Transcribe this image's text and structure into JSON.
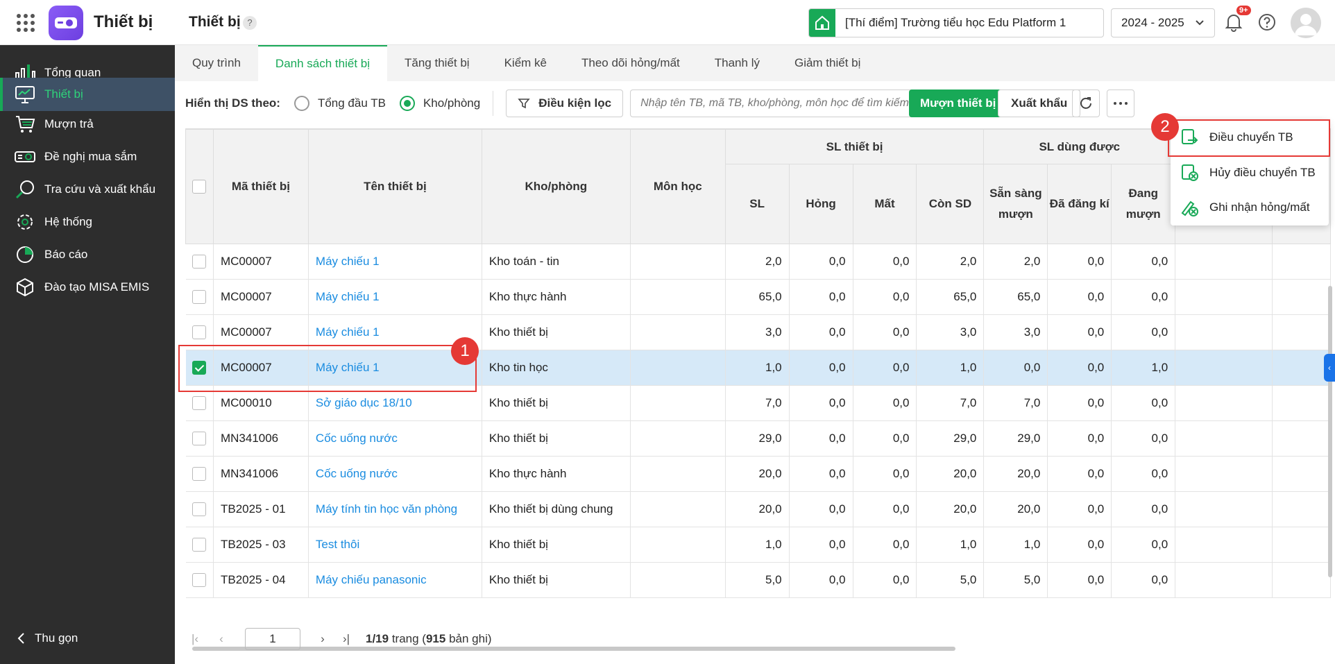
{
  "app": {
    "title": "Thiết bị",
    "page_title": "Thiết bị",
    "help": "?"
  },
  "header": {
    "school": "[Thí điểm] Trường tiểu học Edu Platform 1",
    "year": "2024 - 2025",
    "notif_badge": "9+"
  },
  "sidebar": {
    "items": [
      {
        "label": "Tổng quan",
        "icon": "chart-bars-icon"
      },
      {
        "label": "Thiết bị",
        "icon": "monitor-icon"
      },
      {
        "label": "Mượn trả",
        "icon": "cart-icon"
      },
      {
        "label": "Đề nghị mua sắm",
        "icon": "projector-icon"
      },
      {
        "label": "Tra cứu và xuất khẩu",
        "icon": "search-icon"
      },
      {
        "label": "Hệ thống",
        "icon": "gear-icon"
      },
      {
        "label": "Báo cáo",
        "icon": "pie-chart-icon"
      },
      {
        "label": "Đào tạo MISA EMIS",
        "icon": "cube-icon"
      }
    ],
    "collapse": "Thu gọn"
  },
  "tabs": [
    "Quy trình",
    "Danh sách thiết bị",
    "Tăng thiết bị",
    "Kiểm kê",
    "Theo dõi hỏng/mất",
    "Thanh lý",
    "Giảm thiết bị"
  ],
  "toolbar": {
    "view_label": "Hiển thị DS theo:",
    "radio_total": "Tổng đầu TB",
    "radio_room": "Kho/phòng",
    "filter": "Điều kiện lọc",
    "search_placeholder": "Nhập tên TB, mã TB, kho/phòng, môn học để tìm kiếm",
    "borrow": "Mượn thiết bị",
    "export": "Xuất khẩu"
  },
  "table": {
    "headers": {
      "code": "Mã thiết bị",
      "name": "Tên thiết bị",
      "room": "Kho/phòng",
      "subject": "Môn học",
      "sl_group": "SL thiết bị",
      "sl": "SL",
      "broken": "Hỏng",
      "lost": "Mất",
      "remain": "Còn SD",
      "usable_group": "SL dùng được",
      "ready": "Sẵn sàng mượn",
      "registered": "Đã đăng kí",
      "borrowing": "Đang mượn"
    },
    "rows": [
      {
        "code": "MC00007",
        "name": "Máy chiếu 1",
        "room": "Kho toán - tin",
        "sl": "2,0",
        "broken": "0,0",
        "lost": "0,0",
        "remain": "2,0",
        "ready": "2,0",
        "registered": "0,0",
        "borrowing": "0,0"
      },
      {
        "code": "MC00007",
        "name": "Máy chiếu 1",
        "room": "Kho thực hành",
        "sl": "65,0",
        "broken": "0,0",
        "lost": "0,0",
        "remain": "65,0",
        "ready": "65,0",
        "registered": "0,0",
        "borrowing": "0,0"
      },
      {
        "code": "MC00007",
        "name": "Máy chiếu 1",
        "room": "Kho thiết bị",
        "sl": "3,0",
        "broken": "0,0",
        "lost": "0,0",
        "remain": "3,0",
        "ready": "3,0",
        "registered": "0,0",
        "borrowing": "0,0"
      },
      {
        "code": "MC00007",
        "name": "Máy chiếu 1",
        "room": "Kho tin học",
        "sl": "1,0",
        "broken": "0,0",
        "lost": "0,0",
        "remain": "1,0",
        "ready": "0,0",
        "registered": "0,0",
        "borrowing": "1,0"
      },
      {
        "code": "MC00010",
        "name": "Sở giáo dục 18/10",
        "room": "Kho thiết bị",
        "sl": "7,0",
        "broken": "0,0",
        "lost": "0,0",
        "remain": "7,0",
        "ready": "7,0",
        "registered": "0,0",
        "borrowing": "0,0"
      },
      {
        "code": "MN341006",
        "name": "Cốc uống nước",
        "room": "Kho thiết bị",
        "sl": "29,0",
        "broken": "0,0",
        "lost": "0,0",
        "remain": "29,0",
        "ready": "29,0",
        "registered": "0,0",
        "borrowing": "0,0"
      },
      {
        "code": "MN341006",
        "name": "Cốc uống nước",
        "room": "Kho thực hành",
        "sl": "20,0",
        "broken": "0,0",
        "lost": "0,0",
        "remain": "20,0",
        "ready": "20,0",
        "registered": "0,0",
        "borrowing": "0,0"
      },
      {
        "code": "TB2025 - 01",
        "name": "Máy tính tin học văn phòng",
        "room": "Kho thiết bị dùng chung",
        "sl": "20,0",
        "broken": "0,0",
        "lost": "0,0",
        "remain": "20,0",
        "ready": "20,0",
        "registered": "0,0",
        "borrowing": "0,0"
      },
      {
        "code": "TB2025 - 03",
        "name": "Test thôi",
        "room": "Kho thiết bị",
        "sl": "1,0",
        "broken": "0,0",
        "lost": "0,0",
        "remain": "1,0",
        "ready": "1,0",
        "registered": "0,0",
        "borrowing": "0,0"
      },
      {
        "code": "TB2025 - 04",
        "name": "Máy chiếu panasonic",
        "room": "Kho thiết bị",
        "sl": "5,0",
        "broken": "0,0",
        "lost": "0,0",
        "remain": "5,0",
        "ready": "5,0",
        "registered": "0,0",
        "borrowing": "0,0"
      }
    ]
  },
  "pager": {
    "page": "1",
    "current": "1/19",
    "trang": "trang",
    "total": "915",
    "records": "bản ghi"
  },
  "menu": {
    "transfer": "Điều chuyển TB",
    "cancel_transfer": "Hủy điều chuyển TB",
    "record_damage": "Ghi nhận hỏng/mất"
  },
  "markers": [
    "1",
    "2"
  ],
  "colors": {
    "accent": "#18a957",
    "link": "#1a8ce0",
    "selected_row": "#d6e9f8",
    "highlight": "#e53935",
    "sidebar": "#2d2d2d"
  }
}
